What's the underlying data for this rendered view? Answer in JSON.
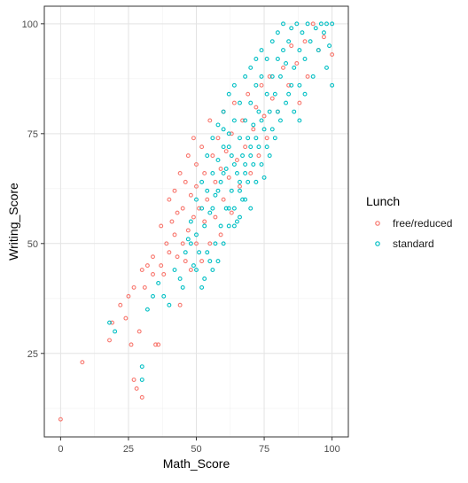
{
  "chart_data": {
    "type": "scatter",
    "title": "",
    "xlabel": "Math_Score",
    "ylabel": "Writing_Score",
    "xlim": [
      -6,
      106
    ],
    "ylim": [
      6,
      104
    ],
    "x_ticks": [
      0,
      25,
      50,
      75,
      100
    ],
    "y_ticks": [
      25,
      50,
      75,
      100
    ],
    "x_tick_labels": [
      "0",
      "25",
      "50",
      "75",
      "100"
    ],
    "y_tick_labels": [
      "25",
      "50",
      "75",
      "100"
    ],
    "grid": true,
    "legend_position": "right",
    "legend_title": "Lunch",
    "series": [
      {
        "name": "free/reduced",
        "color": "#F8766D",
        "points": [
          [
            0,
            10
          ],
          [
            8,
            23
          ],
          [
            18,
            28
          ],
          [
            19,
            32
          ],
          [
            22,
            36
          ],
          [
            24,
            33
          ],
          [
            25,
            38
          ],
          [
            26,
            27
          ],
          [
            27,
            19
          ],
          [
            27,
            40
          ],
          [
            28,
            17
          ],
          [
            29,
            30
          ],
          [
            30,
            15
          ],
          [
            30,
            44
          ],
          [
            31,
            40
          ],
          [
            32,
            45
          ],
          [
            34,
            43
          ],
          [
            34,
            47
          ],
          [
            35,
            27
          ],
          [
            36,
            27
          ],
          [
            37,
            45
          ],
          [
            37,
            54
          ],
          [
            38,
            43
          ],
          [
            39,
            50
          ],
          [
            40,
            48
          ],
          [
            40,
            60
          ],
          [
            41,
            55
          ],
          [
            42,
            52
          ],
          [
            42,
            62
          ],
          [
            43,
            47
          ],
          [
            43,
            57
          ],
          [
            44,
            36
          ],
          [
            44,
            66
          ],
          [
            45,
            50
          ],
          [
            45,
            58
          ],
          [
            46,
            46
          ],
          [
            46,
            64
          ],
          [
            47,
            53
          ],
          [
            47,
            70
          ],
          [
            48,
            44
          ],
          [
            48,
            61
          ],
          [
            49,
            56
          ],
          [
            49,
            74
          ],
          [
            50,
            50
          ],
          [
            50,
            63
          ],
          [
            50,
            68
          ],
          [
            51,
            58
          ],
          [
            52,
            46
          ],
          [
            52,
            72
          ],
          [
            53,
            55
          ],
          [
            53,
            66
          ],
          [
            54,
            60
          ],
          [
            55,
            78
          ],
          [
            55,
            50
          ],
          [
            56,
            70
          ],
          [
            57,
            56
          ],
          [
            57,
            64
          ],
          [
            58,
            74
          ],
          [
            59,
            67
          ],
          [
            59,
            52
          ],
          [
            60,
            80
          ],
          [
            60,
            60
          ],
          [
            61,
            71
          ],
          [
            62,
            65
          ],
          [
            63,
            75
          ],
          [
            63,
            57
          ],
          [
            64,
            82
          ],
          [
            65,
            69
          ],
          [
            66,
            63
          ],
          [
            67,
            78
          ],
          [
            68,
            72
          ],
          [
            69,
            84
          ],
          [
            70,
            66
          ],
          [
            71,
            76
          ],
          [
            72,
            81
          ],
          [
            73,
            70
          ],
          [
            74,
            86
          ],
          [
            75,
            79
          ],
          [
            76,
            74
          ],
          [
            77,
            88
          ],
          [
            78,
            83
          ],
          [
            80,
            80
          ],
          [
            82,
            90
          ],
          [
            84,
            86
          ],
          [
            85,
            95
          ],
          [
            87,
            91
          ],
          [
            88,
            82
          ],
          [
            90,
            96
          ],
          [
            91,
            88
          ],
          [
            93,
            100
          ],
          [
            95,
            94
          ],
          [
            97,
            97
          ],
          [
            100,
            93
          ]
        ]
      },
      {
        "name": "standard",
        "color": "#00BFC4",
        "points": [
          [
            18,
            32
          ],
          [
            20,
            30
          ],
          [
            30,
            22
          ],
          [
            30,
            19
          ],
          [
            32,
            35
          ],
          [
            34,
            38
          ],
          [
            36,
            41
          ],
          [
            38,
            38
          ],
          [
            40,
            36
          ],
          [
            42,
            44
          ],
          [
            44,
            42
          ],
          [
            45,
            40
          ],
          [
            46,
            48
          ],
          [
            47,
            51
          ],
          [
            48,
            55
          ],
          [
            49,
            45
          ],
          [
            50,
            52
          ],
          [
            50,
            60
          ],
          [
            51,
            48
          ],
          [
            52,
            58
          ],
          [
            52,
            64
          ],
          [
            53,
            42
          ],
          [
            53,
            54
          ],
          [
            54,
            62
          ],
          [
            54,
            70
          ],
          [
            55,
            46
          ],
          [
            55,
            57
          ],
          [
            56,
            66
          ],
          [
            56,
            74
          ],
          [
            57,
            50
          ],
          [
            57,
            61
          ],
          [
            58,
            69
          ],
          [
            58,
            77
          ],
          [
            59,
            54
          ],
          [
            59,
            64
          ],
          [
            60,
            72
          ],
          [
            60,
            80
          ],
          [
            61,
            58
          ],
          [
            61,
            67
          ],
          [
            62,
            75
          ],
          [
            62,
            84
          ],
          [
            63,
            62
          ],
          [
            63,
            70
          ],
          [
            64,
            78
          ],
          [
            64,
            86
          ],
          [
            65,
            55
          ],
          [
            65,
            66
          ],
          [
            66,
            74
          ],
          [
            66,
            82
          ],
          [
            67,
            60
          ],
          [
            67,
            70
          ],
          [
            68,
            78
          ],
          [
            68,
            88
          ],
          [
            69,
            64
          ],
          [
            69,
            74
          ],
          [
            70,
            82
          ],
          [
            70,
            90
          ],
          [
            71,
            68
          ],
          [
            71,
            77
          ],
          [
            72,
            86
          ],
          [
            72,
            92
          ],
          [
            73,
            72
          ],
          [
            73,
            80
          ],
          [
            74,
            88
          ],
          [
            74,
            94
          ],
          [
            75,
            65
          ],
          [
            75,
            76
          ],
          [
            76,
            84
          ],
          [
            76,
            92
          ],
          [
            77,
            70
          ],
          [
            77,
            80
          ],
          [
            78,
            88
          ],
          [
            78,
            96
          ],
          [
            79,
            74
          ],
          [
            79,
            84
          ],
          [
            80,
            92
          ],
          [
            80,
            98
          ],
          [
            81,
            78
          ],
          [
            81,
            88
          ],
          [
            82,
            94
          ],
          [
            82,
            100
          ],
          [
            83,
            82
          ],
          [
            83,
            91
          ],
          [
            84,
            96
          ],
          [
            85,
            86
          ],
          [
            85,
            99
          ],
          [
            86,
            90
          ],
          [
            87,
            100
          ],
          [
            88,
            94
          ],
          [
            88,
            86
          ],
          [
            89,
            98
          ],
          [
            90,
            92
          ],
          [
            91,
            100
          ],
          [
            92,
            96
          ],
          [
            93,
            88
          ],
          [
            94,
            99
          ],
          [
            95,
            94
          ],
          [
            96,
            100
          ],
          [
            97,
            98
          ],
          [
            98,
            90
          ],
          [
            98,
            100
          ],
          [
            99,
            95
          ],
          [
            100,
            100
          ],
          [
            100,
            86
          ],
          [
            60,
            76
          ],
          [
            62,
            72
          ],
          [
            64,
            68
          ],
          [
            66,
            64
          ],
          [
            68,
            60
          ],
          [
            70,
            58
          ],
          [
            72,
            64
          ],
          [
            74,
            68
          ],
          [
            76,
            72
          ],
          [
            78,
            76
          ],
          [
            80,
            80
          ],
          [
            84,
            84
          ],
          [
            86,
            80
          ],
          [
            88,
            78
          ],
          [
            90,
            84
          ],
          [
            56,
            58
          ],
          [
            58,
            62
          ],
          [
            60,
            66
          ],
          [
            62,
            58
          ],
          [
            64,
            54
          ],
          [
            66,
            56
          ],
          [
            68,
            66
          ],
          [
            70,
            70
          ],
          [
            72,
            74
          ],
          [
            74,
            78
          ],
          [
            48,
            50
          ],
          [
            50,
            44
          ],
          [
            52,
            40
          ],
          [
            54,
            48
          ],
          [
            56,
            44
          ],
          [
            58,
            46
          ],
          [
            60,
            50
          ],
          [
            62,
            54
          ],
          [
            64,
            58
          ],
          [
            66,
            62
          ],
          [
            68,
            68
          ],
          [
            70,
            72
          ]
        ]
      }
    ]
  }
}
